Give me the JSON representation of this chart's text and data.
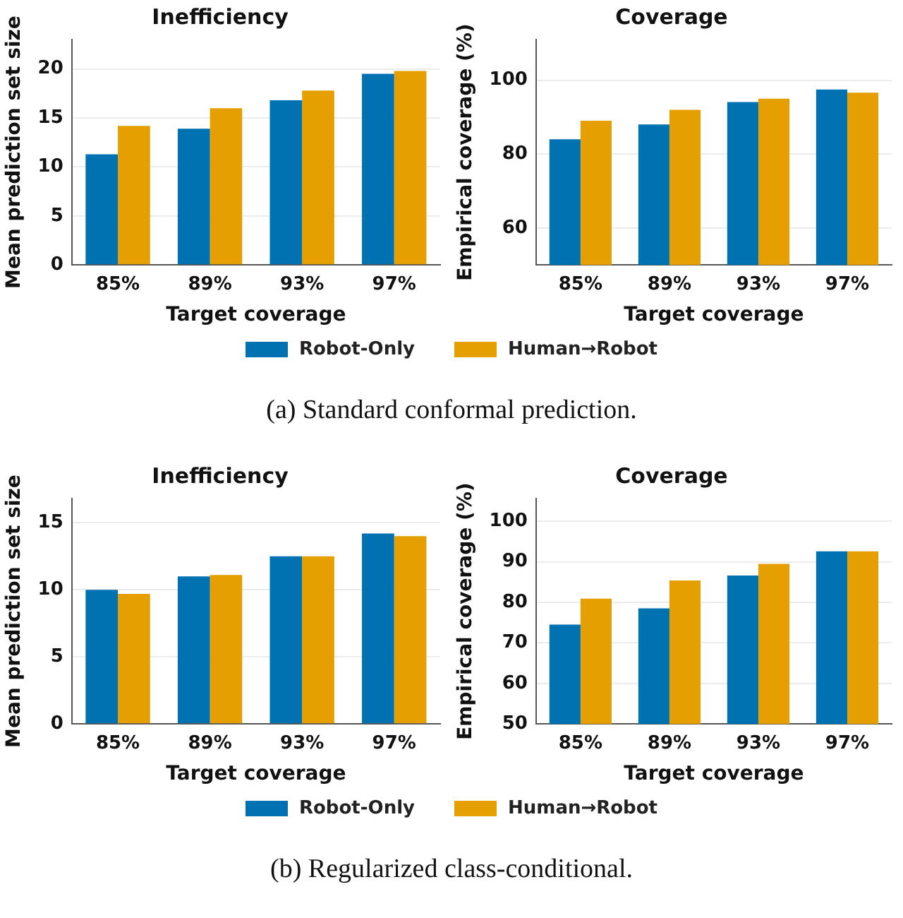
{
  "chart_data": [
    {
      "type": "bar",
      "title": "Inefficiency",
      "xlabel": "Target coverage",
      "ylabel": "Mean prediction set size",
      "categories": [
        "85%",
        "89%",
        "93%",
        "97%"
      ],
      "series": [
        {
          "name": "Robot-Only",
          "color": "#0072b2",
          "values": [
            11.3,
            13.9,
            16.8,
            19.5
          ]
        },
        {
          "name": "Human→Robot",
          "color": "#e69f00",
          "values": [
            14.2,
            16.0,
            17.8,
            19.8
          ]
        }
      ],
      "ylim": [
        0,
        23
      ],
      "yticks": [
        0,
        5,
        10,
        15,
        20
      ],
      "grid": "y",
      "legend": "bottom",
      "annotations": [
        "(a) Standard conformal prediction."
      ]
    },
    {
      "type": "bar",
      "title": "Coverage",
      "xlabel": "Target coverage",
      "ylabel": "Empirical coverage (%)",
      "categories": [
        "85%",
        "89%",
        "93%",
        "97%"
      ],
      "series": [
        {
          "color": "#0072b2",
          "values": [
            84,
            88,
            94.1,
            97.5
          ]
        },
        {
          "color": "#e69f00",
          "values": [
            89,
            92,
            95,
            96.6
          ]
        }
      ],
      "ylim": [
        50,
        111
      ],
      "yticks": [
        60,
        80,
        100
      ],
      "grid": "y"
    },
    {
      "type": "bar",
      "title": "Inefficiency",
      "xlabel": "Target coverage",
      "ylabel": "Mean prediction set size",
      "categories": [
        "85%",
        "89%",
        "93%",
        "97%"
      ],
      "series": [
        {
          "name": "Robot-Only",
          "color": "#0072b2",
          "values": [
            10.0,
            11.0,
            12.5,
            14.2
          ]
        },
        {
          "name": "Human→Robot",
          "color": "#e69f00",
          "values": [
            9.7,
            11.1,
            12.5,
            14.0
          ]
        }
      ],
      "ylim": [
        0,
        16.8
      ],
      "yticks": [
        0,
        5,
        10,
        15
      ],
      "grid": "y",
      "legend": "bottom",
      "annotations": [
        "(b) Regularized class-conditional."
      ]
    },
    {
      "type": "bar",
      "title": "Coverage",
      "xlabel": "Target coverage",
      "ylabel": "Empirical coverage (%)",
      "categories": [
        "85%",
        "89%",
        "93%",
        "97%"
      ],
      "series": [
        {
          "color": "#0072b2",
          "values": [
            74.5,
            78.5,
            86.6,
            92.6
          ]
        },
        {
          "color": "#e69f00",
          "values": [
            80.9,
            85.4,
            89.5,
            92.6
          ]
        }
      ],
      "ylim": [
        50,
        105.6
      ],
      "yticks": [
        50,
        60,
        70,
        80,
        90,
        100
      ],
      "grid": "y"
    }
  ]
}
